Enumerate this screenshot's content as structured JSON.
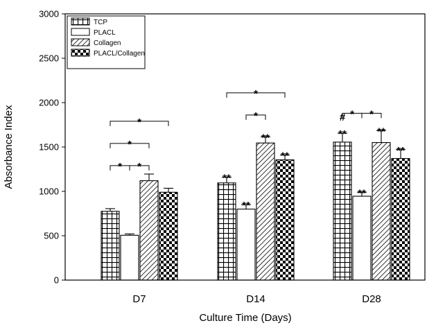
{
  "chart_data": {
    "type": "bar",
    "title": "",
    "xlabel": "Culture Time (Days)",
    "ylabel": "Absorbance Index",
    "ylim": [
      0,
      3000
    ],
    "yticks": [
      "0",
      "500",
      "1000",
      "1500",
      "2000",
      "2500",
      "3000"
    ],
    "categories": [
      "D7",
      "D14",
      "D28"
    ],
    "legend_position": "top-left",
    "series": [
      {
        "name": "TCP",
        "pattern": "grid",
        "values": [
          775,
          1095,
          1555
        ],
        "errors": [
          30,
          65,
          100
        ]
      },
      {
        "name": "PLACL",
        "pattern": "blank",
        "values": [
          505,
          800,
          945
        ],
        "errors": [
          15,
          50,
          45
        ]
      },
      {
        "name": "Collagen",
        "pattern": "diagonal",
        "values": [
          1120,
          1545,
          1550
        ],
        "errors": [
          75,
          70,
          135
        ]
      },
      {
        "name": "PLACL/Collagen",
        "pattern": "checker",
        "values": [
          990,
          1355,
          1370
        ],
        "errors": [
          45,
          55,
          100
        ]
      }
    ],
    "bar_annotations": [
      {
        "category": 1,
        "series": 0,
        "text": "**"
      },
      {
        "category": 1,
        "series": 1,
        "text": "**"
      },
      {
        "category": 1,
        "series": 2,
        "text": "**"
      },
      {
        "category": 1,
        "series": 3,
        "text": "**"
      },
      {
        "category": 2,
        "series": 0,
        "text": "**"
      },
      {
        "category": 2,
        "series": 0,
        "text": "#"
      },
      {
        "category": 2,
        "series": 1,
        "text": "**"
      },
      {
        "category": 2,
        "series": 2,
        "text": "**"
      },
      {
        "category": 2,
        "series": 3,
        "text": "**"
      }
    ],
    "significance_brackets": [
      {
        "category": 0,
        "from": 0,
        "to": 1,
        "y": 1290,
        "text": "*"
      },
      {
        "category": 0,
        "from": 1,
        "to": 2,
        "y": 1290,
        "text": "*"
      },
      {
        "category": 0,
        "from": 0,
        "to": 2,
        "y": 1540,
        "text": "*"
      },
      {
        "category": 0,
        "from": 0,
        "to": 3,
        "y": 1790,
        "text": "*"
      },
      {
        "category": 1,
        "from": 1,
        "to": 2,
        "y": 1860,
        "text": "*"
      },
      {
        "category": 1,
        "from": 0,
        "to": 3,
        "y": 2110,
        "text": "*"
      },
      {
        "category": 2,
        "from": 0,
        "to": 1,
        "y": 1880,
        "text": "*"
      },
      {
        "category": 2,
        "from": 1,
        "to": 2,
        "y": 1880,
        "text": "*"
      }
    ]
  }
}
